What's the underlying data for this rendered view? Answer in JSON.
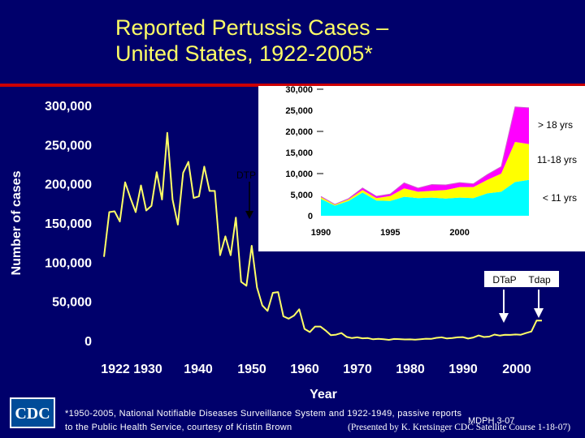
{
  "title_line1": "Reported Pertussis Cases –",
  "title_line2": "United States, 1922-2005*",
  "footnote_line1": "*1950-2005, National Notifiable Diseases Surveillance System and 1922-1949, passive reports",
  "footnote_line2": "to the Public Health Service, courtesy of Kristin Brown",
  "mdph": "MDPH 3-07",
  "credit": "(Presented by K. Kretsinger CDC Satellite Course 1-18-07)",
  "logo_text": "CDC",
  "colors": {
    "background": "#00006b",
    "title": "#ffff66",
    "main_line": "#ffff66",
    "inset_bg": "#ffffff",
    "adult": "#ff00ff",
    "adolescent": "#ffff00",
    "child": "#00ffff"
  },
  "chart_data": [
    {
      "type": "line",
      "title": "Reported Pertussis Cases – United States, 1922-2005*",
      "xlabel": "Year",
      "ylabel": "Number of cases",
      "xlim": [
        1922,
        2005
      ],
      "ylim": [
        0,
        300000
      ],
      "x_ticks": [
        "1922",
        "1930",
        "1940",
        "1950",
        "1960",
        "1970",
        "1980",
        "1990",
        "2000"
      ],
      "y_ticks": [
        "0",
        "50,000",
        "100,000",
        "150,000",
        "200,000",
        "250,000",
        "300,000"
      ],
      "annotations": [
        "DTP",
        "DTaP",
        "Tdap"
      ],
      "series": [
        {
          "x": [
            1922,
            1923,
            1924,
            1925,
            1926,
            1927,
            1928,
            1929,
            1930,
            1931,
            1932,
            1933,
            1934,
            1935,
            1936,
            1937,
            1938,
            1939,
            1940,
            1941,
            1942,
            1943,
            1944,
            1945,
            1946,
            1947,
            1948,
            1949,
            1950,
            1951,
            1952,
            1953,
            1954,
            1955,
            1956,
            1957,
            1958,
            1959,
            1960,
            1961,
            1962,
            1963,
            1964,
            1965,
            1966,
            1967,
            1968,
            1969,
            1970,
            1971,
            1972,
            1973,
            1974,
            1975,
            1976,
            1977,
            1978,
            1979,
            1980,
            1981,
            1982,
            1983,
            1984,
            1985,
            1986,
            1987,
            1988,
            1989,
            1990,
            1991,
            1992,
            1993,
            1994,
            1995,
            1996,
            1997,
            1998,
            1999,
            2000,
            2001,
            2002,
            2003,
            2004,
            2005
          ],
          "values": [
            107000,
            164000,
            165000,
            152000,
            202000,
            182000,
            164000,
            198000,
            166000,
            172000,
            215000,
            180000,
            265000,
            180000,
            148000,
            214000,
            228000,
            182000,
            184000,
            222000,
            191000,
            191000,
            109000,
            133000,
            109000,
            157000,
            75000,
            70000,
            121000,
            68000,
            45000,
            38000,
            61000,
            62000,
            31000,
            28000,
            32000,
            40000,
            15000,
            11000,
            18000,
            18000,
            13000,
            7000,
            7700,
            9700,
            4800,
            3300,
            4250,
            3000,
            3300,
            1760,
            2400,
            1740,
            1000,
            2200,
            2000,
            1600,
            1700,
            1250,
            1900,
            2500,
            2300,
            3600,
            4200,
            2800,
            3450,
            4200,
            4570,
            2720,
            4080,
            6590,
            4620,
            5140,
            7800,
            6560,
            7400,
            7300,
            7870,
            7580,
            9770,
            11650,
            25800,
            25600
          ]
        }
      ]
    },
    {
      "type": "area",
      "x_ticks": [
        "1990",
        "1995",
        "2000"
      ],
      "y_ticks": [
        "0",
        "5,000",
        "10,000",
        "15,000",
        "20,000",
        "25,000",
        "30,000"
      ],
      "xlim": [
        1990,
        2005
      ],
      "ylim": [
        0,
        30000
      ],
      "series": [
        {
          "name": "< 11 yrs",
          "x": [
            1990,
            1991,
            1992,
            1993,
            1994,
            1995,
            1996,
            1997,
            1998,
            1999,
            2000,
            2001,
            2002,
            2003,
            2004,
            2005
          ],
          "values": [
            4000,
            2400,
            3500,
            5500,
            3600,
            3500,
            4500,
            4200,
            4300,
            4100,
            4300,
            4200,
            5300,
            5700,
            8000,
            8500
          ]
        },
        {
          "name": "11-18 yrs",
          "x": [
            1990,
            1991,
            1992,
            1993,
            1994,
            1995,
            1996,
            1997,
            1998,
            1999,
            2000,
            2001,
            2002,
            2003,
            2004,
            2005
          ],
          "values": [
            400,
            250,
            400,
            600,
            600,
            1200,
            2000,
            1500,
            1600,
            2000,
            2500,
            2600,
            3200,
            4300,
            9500,
            8500
          ]
        },
        {
          "name": "> 18 yrs",
          "x": [
            1990,
            1991,
            1992,
            1993,
            1994,
            1995,
            1996,
            1997,
            1998,
            1999,
            2000,
            2001,
            2002,
            2003,
            2004,
            2005
          ],
          "values": [
            170,
            70,
            180,
            490,
            420,
            440,
            1300,
            860,
            1500,
            1200,
            1070,
            780,
            1270,
            1650,
            8300,
            8600
          ]
        }
      ]
    }
  ]
}
